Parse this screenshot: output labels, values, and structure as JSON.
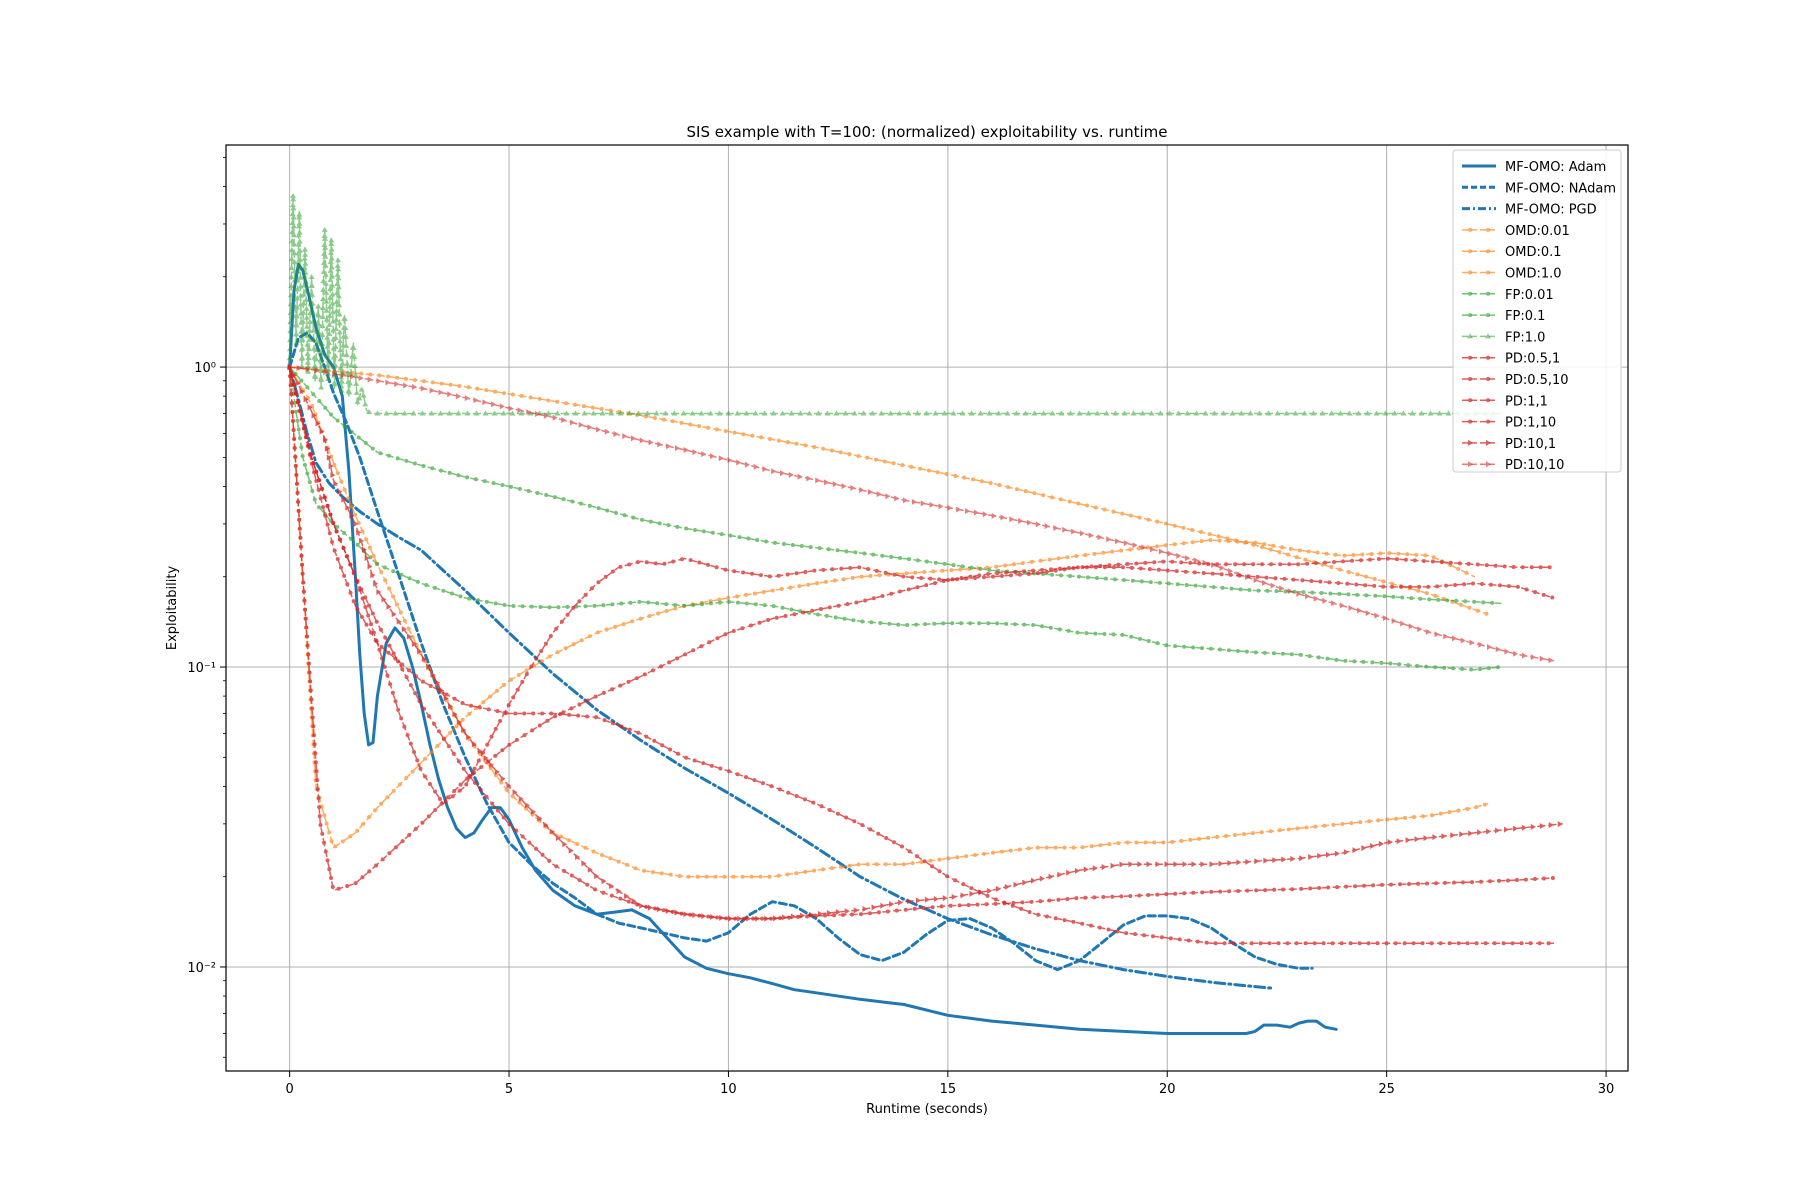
{
  "chart_data": {
    "type": "line",
    "title": "SIS example with T=100: (normalized) exploitability vs. runtime",
    "xlabel": "Runtime (seconds)",
    "ylabel": "Exploitability",
    "xscale": "linear",
    "yscale": "log",
    "xlim": [
      -1.45,
      30.5
    ],
    "ylim": [
      0.0045,
      5.5
    ],
    "xticks": [
      0,
      5,
      10,
      15,
      20,
      25,
      30
    ],
    "xtick_labels": [
      "0",
      "5",
      "10",
      "15",
      "20",
      "25",
      "30"
    ],
    "yticks": [
      0.01,
      0.1,
      1
    ],
    "ytick_labels": [
      "10⁻²",
      "10⁻¹",
      "10⁰"
    ],
    "grid": true,
    "legend_position": "top-right",
    "colors": {
      "blue": "#1f77b4",
      "orange": "#ff7f0e",
      "green": "#2ca02c",
      "red": "#d62728"
    },
    "series": [
      {
        "name": "MF-OMO: Adam",
        "color": "#1f77b4",
        "style": "solid",
        "alpha": 1,
        "width": 3,
        "marker": "",
        "x": [
          0,
          0.1,
          0.2,
          0.3,
          0.45,
          0.6,
          0.8,
          1.0,
          1.2,
          1.35,
          1.5,
          1.6,
          1.7,
          1.8,
          1.9,
          2.0,
          2.2,
          2.4,
          2.6,
          2.8,
          3.0,
          3.2,
          3.4,
          3.6,
          3.8,
          4.0,
          4.2,
          4.4,
          4.6,
          4.8,
          5.0,
          5.3,
          5.6,
          6.0,
          6.5,
          7.0,
          7.5,
          7.8,
          8.2,
          8.6,
          9.0,
          9.5,
          10.0,
          10.5,
          11.0,
          11.5,
          12.0,
          13.0,
          14.0,
          15.0,
          16.0,
          17.0,
          18.0,
          19.0,
          20.0,
          21.0,
          21.5,
          21.8,
          22.0,
          22.2,
          22.5,
          22.8,
          23.0,
          23.2,
          23.4,
          23.6,
          23.85
        ],
        "y": [
          1.0,
          1.8,
          2.2,
          2.1,
          1.7,
          1.35,
          1.1,
          1.0,
          0.8,
          0.45,
          0.2,
          0.11,
          0.07,
          0.055,
          0.056,
          0.08,
          0.12,
          0.135,
          0.125,
          0.1,
          0.075,
          0.055,
          0.042,
          0.034,
          0.029,
          0.027,
          0.028,
          0.031,
          0.034,
          0.034,
          0.031,
          0.025,
          0.021,
          0.018,
          0.016,
          0.015,
          0.0153,
          0.0155,
          0.0145,
          0.0125,
          0.0108,
          0.0099,
          0.0095,
          0.0092,
          0.0088,
          0.0084,
          0.0082,
          0.0078,
          0.0075,
          0.0069,
          0.0066,
          0.0064,
          0.0062,
          0.0061,
          0.006,
          0.006,
          0.006,
          0.006,
          0.0061,
          0.0064,
          0.0064,
          0.0063,
          0.0065,
          0.0066,
          0.0066,
          0.0063,
          0.0062
        ]
      },
      {
        "name": "MF-OMO: NAdam",
        "color": "#1f77b4",
        "style": "dashed",
        "alpha": 1,
        "width": 3,
        "marker": "",
        "x": [
          0,
          0.2,
          0.4,
          0.6,
          0.8,
          1.0,
          1.3,
          1.6,
          2.0,
          2.5,
          3.0,
          3.5,
          4.0,
          4.5,
          5.0,
          5.5,
          6.0,
          6.5,
          7.0,
          7.5,
          8.0,
          8.5,
          9.0,
          9.5,
          10.0,
          10.5,
          11.0,
          11.5,
          12.0,
          12.5,
          13.0,
          13.5,
          14.0,
          14.5,
          15.0,
          15.5,
          16.0,
          16.5,
          17.0,
          17.5,
          18.0,
          18.5,
          19.0,
          19.5,
          20.0,
          20.5,
          21.0,
          21.5,
          22.0,
          22.5,
          23.0,
          23.3
        ],
        "y": [
          1.0,
          1.25,
          1.3,
          1.2,
          1.0,
          0.82,
          0.65,
          0.5,
          0.33,
          0.2,
          0.12,
          0.075,
          0.05,
          0.035,
          0.026,
          0.022,
          0.019,
          0.017,
          0.015,
          0.014,
          0.0135,
          0.013,
          0.0125,
          0.0122,
          0.013,
          0.015,
          0.0165,
          0.016,
          0.0145,
          0.0125,
          0.011,
          0.0105,
          0.0112,
          0.0128,
          0.0143,
          0.0145,
          0.0135,
          0.012,
          0.0105,
          0.0098,
          0.0105,
          0.012,
          0.0138,
          0.0148,
          0.0148,
          0.0145,
          0.0135,
          0.012,
          0.0108,
          0.0102,
          0.0099,
          0.0099
        ]
      },
      {
        "name": "MF-OMO: PGD",
        "color": "#1f77b4",
        "style": "dashdot",
        "alpha": 1,
        "width": 3,
        "marker": "",
        "x": [
          0,
          0.2,
          0.4,
          0.6,
          0.9,
          1.2,
          1.6,
          2.0,
          2.5,
          3.0,
          3.5,
          4.0,
          5.0,
          6.0,
          7.0,
          8.0,
          9.0,
          10.0,
          11.0,
          12.0,
          13.0,
          14.0,
          15.0,
          16.0,
          17.0,
          18.0,
          19.0,
          20.0,
          21.0,
          22.0,
          22.4
        ],
        "y": [
          1.0,
          0.78,
          0.6,
          0.48,
          0.41,
          0.37,
          0.33,
          0.3,
          0.27,
          0.245,
          0.21,
          0.18,
          0.13,
          0.095,
          0.072,
          0.057,
          0.046,
          0.038,
          0.031,
          0.025,
          0.02,
          0.0168,
          0.0145,
          0.0128,
          0.0115,
          0.0105,
          0.0098,
          0.0093,
          0.0089,
          0.0086,
          0.0085
        ]
      },
      {
        "name": "OMD:0.01",
        "color": "#ff7f0e",
        "style": "dashed",
        "alpha": 0.65,
        "width": 1.5,
        "marker": "*",
        "x": [
          0,
          2,
          4,
          6,
          8,
          10,
          12,
          14,
          16,
          18,
          20,
          22,
          24,
          26,
          27.3
        ],
        "y": [
          1.0,
          0.94,
          0.86,
          0.77,
          0.69,
          0.61,
          0.54,
          0.47,
          0.41,
          0.35,
          0.3,
          0.255,
          0.21,
          0.175,
          0.15
        ]
      },
      {
        "name": "OMD:0.1",
        "color": "#ff7f0e",
        "style": "dashed",
        "alpha": 0.65,
        "width": 1.5,
        "marker": "*",
        "x": [
          0,
          0.5,
          1,
          1.5,
          2,
          3,
          4,
          5,
          6,
          7,
          8,
          9,
          10,
          11,
          12,
          13,
          14,
          15,
          16,
          17,
          18,
          19,
          20,
          21,
          22,
          23,
          24,
          25,
          26,
          27,
          27.3
        ],
        "y": [
          1.0,
          0.75,
          0.48,
          0.32,
          0.22,
          0.11,
          0.06,
          0.038,
          0.028,
          0.024,
          0.021,
          0.02,
          0.02,
          0.02,
          0.021,
          0.022,
          0.022,
          0.023,
          0.024,
          0.025,
          0.025,
          0.026,
          0.026,
          0.027,
          0.028,
          0.029,
          0.03,
          0.031,
          0.032,
          0.034,
          0.035
        ]
      },
      {
        "name": "OMD:1.0",
        "color": "#ff7f0e",
        "style": "dashed",
        "alpha": 0.65,
        "width": 1.5,
        "marker": "*",
        "x": [
          0,
          0.3,
          0.6,
          1,
          1.5,
          2,
          3,
          4,
          5,
          6,
          7,
          8,
          9,
          10,
          11,
          12,
          13,
          14,
          15,
          16,
          17,
          18,
          19,
          20,
          21,
          22,
          23,
          24,
          25,
          26,
          27
        ],
        "y": [
          1.0,
          0.2,
          0.04,
          0.025,
          0.028,
          0.034,
          0.048,
          0.068,
          0.09,
          0.11,
          0.13,
          0.145,
          0.16,
          0.17,
          0.18,
          0.19,
          0.2,
          0.205,
          0.21,
          0.215,
          0.225,
          0.235,
          0.245,
          0.255,
          0.265,
          0.26,
          0.245,
          0.235,
          0.24,
          0.235,
          0.2
        ]
      },
      {
        "name": "FP:0.01",
        "color": "#2ca02c",
        "style": "dashed",
        "alpha": 0.65,
        "width": 1.5,
        "marker": "*",
        "x": [
          0,
          1,
          2,
          3,
          4,
          5,
          6,
          7,
          8,
          9,
          10,
          11,
          12,
          13,
          14,
          15,
          16,
          17,
          18,
          19,
          20,
          21,
          22,
          23,
          24,
          25,
          26,
          27,
          27.6
        ],
        "y": [
          1.0,
          0.68,
          0.52,
          0.47,
          0.43,
          0.4,
          0.37,
          0.34,
          0.31,
          0.29,
          0.275,
          0.26,
          0.25,
          0.24,
          0.23,
          0.22,
          0.21,
          0.205,
          0.2,
          0.195,
          0.19,
          0.185,
          0.18,
          0.178,
          0.175,
          0.172,
          0.168,
          0.165,
          0.163
        ]
      },
      {
        "name": "FP:0.1",
        "color": "#2ca02c",
        "style": "dashed",
        "alpha": 0.65,
        "width": 1.5,
        "marker": "*",
        "x": [
          0,
          0.3,
          0.6,
          1,
          1.5,
          2,
          3,
          4,
          5,
          6,
          7,
          8,
          9,
          10,
          11,
          12,
          13,
          14,
          15,
          16,
          17,
          18,
          19,
          20,
          21,
          22,
          23,
          24,
          25,
          26,
          27,
          27.6
        ],
        "y": [
          1.0,
          0.5,
          0.35,
          0.3,
          0.26,
          0.22,
          0.19,
          0.17,
          0.16,
          0.158,
          0.16,
          0.165,
          0.16,
          0.165,
          0.16,
          0.15,
          0.142,
          0.138,
          0.14,
          0.14,
          0.138,
          0.13,
          0.128,
          0.118,
          0.115,
          0.112,
          0.11,
          0.105,
          0.103,
          0.1,
          0.098,
          0.1
        ]
      },
      {
        "name": "FP:1.0",
        "color": "#2ca02c",
        "style": "dashed",
        "alpha": 0.55,
        "width": 1.5,
        "marker": "^",
        "x": [
          0,
          0.08,
          0.15,
          0.22,
          0.28,
          0.35,
          0.42,
          0.5,
          0.58,
          0.65,
          0.72,
          0.8,
          0.88,
          0.95,
          1.02,
          1.1,
          1.18,
          1.25,
          1.35,
          1.45,
          1.55,
          1.65,
          1.75,
          1.85,
          2.0,
          27.6
        ],
        "y": [
          1.0,
          3.8,
          1.2,
          3.3,
          1.0,
          2.5,
          0.95,
          2.0,
          0.9,
          1.6,
          0.85,
          2.9,
          0.9,
          2.7,
          0.85,
          2.3,
          0.82,
          1.5,
          0.8,
          1.2,
          0.75,
          0.85,
          0.72,
          0.7,
          0.7,
          0.7
        ]
      },
      {
        "name": "PD:0.5,1",
        "color": "#d62728",
        "style": "dashed",
        "alpha": 0.75,
        "width": 1.5,
        "marker": "*",
        "x": [
          0,
          0.3,
          0.7,
          1,
          1.5,
          2,
          3,
          4,
          5,
          6,
          7,
          8,
          9,
          10,
          11,
          12,
          13,
          14,
          15,
          16,
          17,
          18,
          19,
          20,
          21,
          22,
          23,
          24,
          25,
          26,
          27,
          28,
          28.8
        ],
        "y": [
          1.0,
          0.2,
          0.03,
          0.018,
          0.019,
          0.022,
          0.03,
          0.042,
          0.055,
          0.068,
          0.08,
          0.093,
          0.11,
          0.13,
          0.145,
          0.155,
          0.165,
          0.18,
          0.195,
          0.205,
          0.21,
          0.215,
          0.215,
          0.21,
          0.205,
          0.2,
          0.195,
          0.19,
          0.185,
          0.185,
          0.19,
          0.185,
          0.17
        ]
      },
      {
        "name": "PD:0.5,10",
        "color": "#d62728",
        "style": "dashed",
        "alpha": 0.75,
        "width": 1.5,
        "marker": "*",
        "x": [
          0,
          0.5,
          1,
          1.5,
          2,
          3,
          4,
          5,
          6,
          7,
          8,
          9,
          10,
          11,
          12,
          13,
          14,
          15,
          16,
          17,
          18,
          19,
          20,
          21,
          22,
          23,
          24,
          25,
          26,
          27,
          28,
          28.8
        ],
        "y": [
          1.0,
          0.5,
          0.3,
          0.2,
          0.14,
          0.075,
          0.045,
          0.03,
          0.022,
          0.018,
          0.016,
          0.015,
          0.0145,
          0.0145,
          0.0148,
          0.015,
          0.0155,
          0.016,
          0.0162,
          0.0165,
          0.017,
          0.0172,
          0.0175,
          0.0178,
          0.018,
          0.0182,
          0.0185,
          0.0188,
          0.019,
          0.0192,
          0.0195,
          0.0198
        ]
      },
      {
        "name": "PD:1,1",
        "color": "#d62728",
        "style": "dashed",
        "alpha": 0.75,
        "width": 1.5,
        "marker": "*",
        "x": [
          0,
          0.5,
          1,
          1.5,
          2,
          3,
          4,
          5,
          6,
          7,
          8,
          9,
          10,
          11,
          12,
          13,
          14,
          15,
          16,
          17,
          18,
          19,
          20,
          21,
          22,
          23,
          24,
          25,
          26,
          27,
          28,
          28.8
        ],
        "y": [
          1.0,
          0.48,
          0.25,
          0.16,
          0.12,
          0.09,
          0.075,
          0.07,
          0.07,
          0.068,
          0.06,
          0.05,
          0.045,
          0.04,
          0.035,
          0.03,
          0.025,
          0.02,
          0.017,
          0.015,
          0.014,
          0.013,
          0.0125,
          0.012,
          0.012,
          0.012,
          0.012,
          0.012,
          0.012,
          0.012,
          0.012,
          0.012
        ]
      },
      {
        "name": "PD:1,10",
        "color": "#d62728",
        "style": "dashed",
        "alpha": 0.75,
        "width": 1.5,
        "marker": "*",
        "x": [
          0,
          0.5,
          1,
          1.5,
          2,
          2.5,
          3,
          3.5,
          4,
          4.5,
          5,
          5.5,
          6,
          6.5,
          7,
          7.5,
          8,
          8.5,
          9,
          10,
          11,
          12,
          13,
          14,
          15,
          16,
          17,
          18,
          19,
          20,
          21,
          22,
          23,
          24,
          25,
          26,
          27,
          28,
          28.8
        ],
        "y": [
          1.0,
          0.5,
          0.3,
          0.2,
          0.12,
          0.07,
          0.045,
          0.035,
          0.04,
          0.055,
          0.075,
          0.1,
          0.13,
          0.16,
          0.19,
          0.215,
          0.225,
          0.22,
          0.23,
          0.21,
          0.2,
          0.21,
          0.215,
          0.2,
          0.195,
          0.2,
          0.205,
          0.215,
          0.22,
          0.225,
          0.22,
          0.22,
          0.22,
          0.225,
          0.23,
          0.225,
          0.22,
          0.215,
          0.215
        ]
      },
      {
        "name": "PD:10,1",
        "color": "#d62728",
        "style": "dashed",
        "alpha": 0.75,
        "width": 1.5,
        "marker": ">",
        "x": [
          0,
          0.8,
          1,
          1.5,
          2,
          3,
          4,
          5,
          6,
          7,
          8,
          9,
          10,
          11,
          12,
          13,
          14,
          15,
          16,
          17,
          18,
          19,
          20,
          21,
          22,
          23,
          24,
          25,
          26,
          27,
          28,
          29
        ],
        "y": [
          1.0,
          0.58,
          0.42,
          0.3,
          0.18,
          0.11,
          0.06,
          0.04,
          0.028,
          0.02,
          0.016,
          0.015,
          0.0145,
          0.0145,
          0.015,
          0.0155,
          0.0165,
          0.017,
          0.018,
          0.0195,
          0.021,
          0.022,
          0.022,
          0.022,
          0.0225,
          0.023,
          0.024,
          0.026,
          0.027,
          0.028,
          0.029,
          0.03
        ]
      },
      {
        "name": "PD:10,10",
        "color": "#d62728",
        "style": "dashed",
        "alpha": 0.6,
        "width": 1.5,
        "marker": ">",
        "x": [
          0,
          0.5,
          1,
          2,
          3,
          4,
          5,
          6,
          7,
          8,
          9,
          10,
          11,
          12,
          13,
          14,
          15,
          16,
          17,
          18,
          19,
          20,
          21,
          22,
          23,
          24,
          25,
          26,
          27,
          28,
          28.8
        ],
        "y": [
          1.0,
          0.98,
          0.95,
          0.9,
          0.85,
          0.79,
          0.73,
          0.68,
          0.62,
          0.57,
          0.53,
          0.49,
          0.45,
          0.42,
          0.39,
          0.36,
          0.34,
          0.32,
          0.3,
          0.28,
          0.26,
          0.24,
          0.22,
          0.195,
          0.175,
          0.16,
          0.145,
          0.13,
          0.12,
          0.11,
          0.105
        ]
      }
    ]
  }
}
